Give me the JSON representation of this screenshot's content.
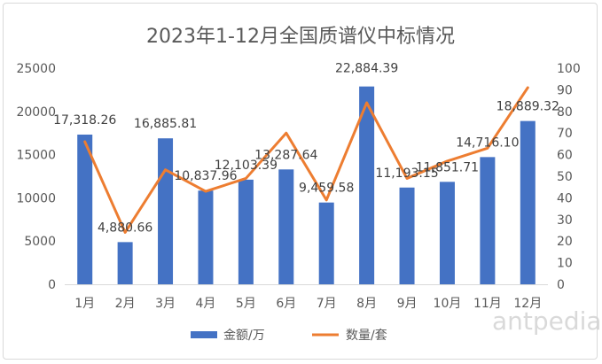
{
  "chart_data": {
    "type": "bar",
    "title": "2023年1-12月全国质谱仪中标情况",
    "categories": [
      "1月",
      "2月",
      "3月",
      "4月",
      "5月",
      "6月",
      "7月",
      "8月",
      "9月",
      "10月",
      "11月",
      "12月"
    ],
    "series": [
      {
        "name": "金额/万",
        "type": "bar",
        "axis": "left",
        "color": "#4472C4",
        "values": [
          17318.26,
          4880.66,
          16885.81,
          10837.96,
          12103.39,
          13287.64,
          9459.58,
          22884.39,
          11193.15,
          11851.71,
          14716.1,
          18889.32
        ],
        "labels": [
          "17,318.26",
          "4,880.66",
          "16,885.81",
          "10,837.96",
          "12,103.39",
          "13,287.64",
          "9,459.58",
          "22,884.39",
          "11,193.15",
          "11,851.71",
          "14,716.10",
          "18,889.32"
        ]
      },
      {
        "name": "数量/套",
        "type": "line",
        "axis": "right",
        "color": "#ED7D31",
        "values": [
          66,
          24,
          53,
          43,
          49,
          70,
          39,
          84,
          49,
          57,
          63,
          91
        ]
      }
    ],
    "y_left": {
      "min": 0,
      "max": 25000,
      "ticks": [
        0,
        5000,
        10000,
        15000,
        20000,
        25000
      ]
    },
    "y_right": {
      "min": 0,
      "max": 100,
      "ticks": [
        0,
        10,
        20,
        30,
        40,
        50,
        60,
        70,
        80,
        90,
        100
      ]
    },
    "grid": false,
    "legend_position": "bottom"
  },
  "watermark": "antpedia"
}
